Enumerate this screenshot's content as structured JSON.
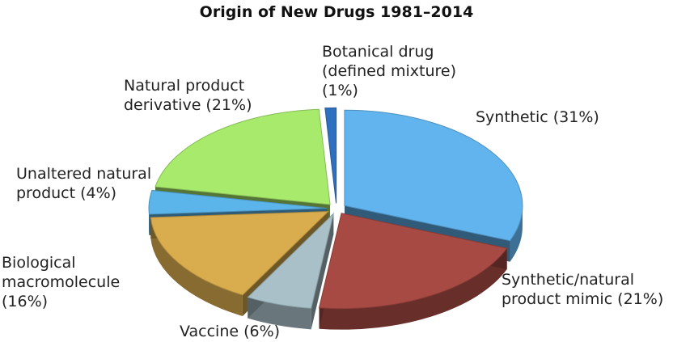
{
  "chart_data": {
    "type": "pie",
    "title": "Origin of New Drugs 1981–2014",
    "exploded": true,
    "three_d": true,
    "slices": [
      {
        "label": "Synthetic (31%)",
        "value": 31,
        "color": "#62b4ef"
      },
      {
        "label": "Synthetic/natural product mimic (21%)",
        "value": 21,
        "color": "#a84a44"
      },
      {
        "label": "Vaccine (6%)",
        "value": 6,
        "color": "#a9c0c8"
      },
      {
        "label": "Biological macromolecule (16%)",
        "value": 16,
        "color": "#d9ad4d"
      },
      {
        "label": "Unaltered natural product (4%)",
        "value": 4,
        "color": "#5cb5ea"
      },
      {
        "label": "Natural product derivative (21%)",
        "value": 21,
        "color": "#a7ea6c"
      },
      {
        "label": "Botanical drug (defined mixture) (1%)",
        "value": 1,
        "color": "#2f6fbf"
      }
    ]
  }
}
